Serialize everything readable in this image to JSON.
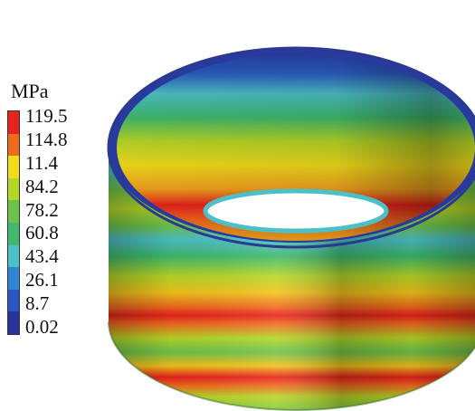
{
  "legend": {
    "unit": "MPa",
    "labels": [
      "119.5",
      "114.8",
      "11.4",
      "84.2",
      "78.2",
      "60.8",
      "43.4",
      "26.1",
      "8.7",
      "0.02"
    ],
    "colors": [
      "#e8221c",
      "#f06a1e",
      "#f2dc1a",
      "#b6d627",
      "#6cc34a",
      "#3fb96b",
      "#4cc0c7",
      "#2e86d3",
      "#2b55c0",
      "#27339c"
    ]
  }
}
